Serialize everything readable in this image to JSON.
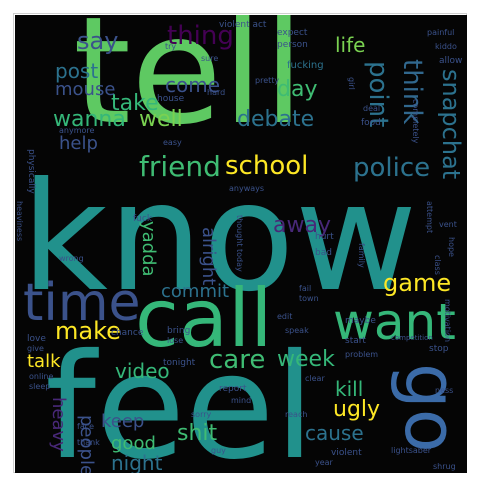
{
  "image": {
    "words": {
      "tell": "tell",
      "know": "know",
      "feel": "feel",
      "call": "call",
      "want": "want",
      "time": "time",
      "go": "go",
      "friend": "friend",
      "school": "school",
      "police": "police",
      "say": "say",
      "thing": "thing",
      "life": "life",
      "point": "point",
      "think": "think",
      "snapchat": "snapchat",
      "post": "post",
      "mouse": "mouse",
      "take": "take",
      "wanna": "wanna",
      "come": "come",
      "day": "day",
      "well": "well",
      "debate": "debate",
      "help": "help",
      "away": "away",
      "alright": "alright",
      "yadda": "yadda",
      "game": "game",
      "make": "make",
      "commit": "commit",
      "care": "care",
      "week": "week",
      "talk": "talk",
      "video": "video",
      "kill": "kill",
      "heavy": "heavy",
      "keep": "keep",
      "people": "people",
      "good": "good",
      "night": "night",
      "shit": "shit",
      "cause": "cause",
      "ugly": "ugly",
      "violent_act": "violent act",
      "fucking": "fucking",
      "house": "house",
      "anymore": "anymore",
      "physically": "physically",
      "heaviness": "heaviness",
      "fuck": "fuck",
      "wrong": "wrong",
      "hurt": "hurt",
      "bad": "bad",
      "maybe": "maybe",
      "start": "start",
      "problem": "problem",
      "pretty": "pretty",
      "thought_today": "thought today",
      "chance": "chance",
      "bring": "bring",
      "lose": "lose",
      "love": "love",
      "give": "give",
      "online": "online",
      "sleep": "sleep",
      "tonight": "tonight",
      "report": "report",
      "mind": "mind",
      "sorry": "sorry",
      "reach": "reach",
      "clear": "clear",
      "violent": "violent",
      "year": "year",
      "guy": "guy",
      "face": "face",
      "thank": "thank",
      "motivation": "motivation",
      "class": "class",
      "family": "family",
      "hope": "hope",
      "stop": "stop",
      "competition": "competition",
      "lightsaber": "lightsaber",
      "shrug": "shrug",
      "allow": "allow",
      "painful": "painful",
      "kiddo": "kiddo",
      "completely": "completely",
      "food": "food",
      "deal": "deal",
      "girl": "girl",
      "expect": "expect",
      "person": "person",
      "try": "try",
      "sure": "sure",
      "hard": "hard",
      "attempt": "attempt",
      "easy": "easy",
      "anyways": "anyways",
      "vent": "vent",
      "edit": "edit",
      "fail": "fail",
      "town": "town",
      "speak": "speak",
      "ness": "ness"
    }
  }
}
